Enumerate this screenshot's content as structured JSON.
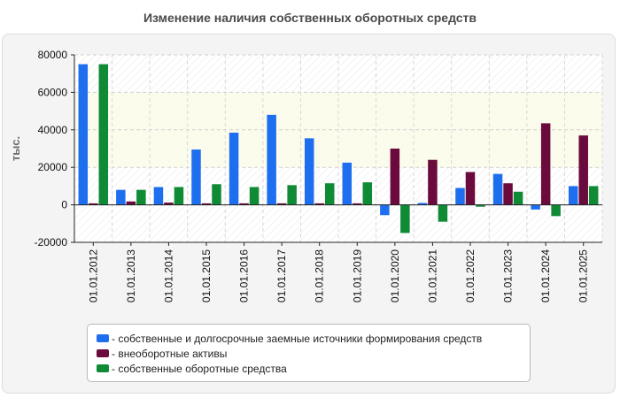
{
  "chart_data": {
    "type": "bar",
    "title": "Изменение наличия собственных оборотных средств",
    "ylabel": "тыс.",
    "xlabel": "",
    "ylim": [
      -20000,
      80000
    ],
    "yticks": [
      "80000",
      "60000",
      "40000",
      "20000",
      "0",
      "-20000"
    ],
    "grid": true,
    "legend_position": "bottom",
    "categories": [
      "01.01.2012",
      "01.01.2013",
      "01.01.2014",
      "01.01.2015",
      "01.01.2016",
      "01.01.2017",
      "01.01.2018",
      "01.01.2019",
      "01.01.2020",
      "01.01.2021",
      "01.01.2022",
      "01.01.2023",
      "01.01.2024",
      "01.01.2025"
    ],
    "series": [
      {
        "name": "собственные и долгосрочные заемные источники формирования средств",
        "color": "#1e6ff0",
        "values": [
          75000,
          8000,
          9500,
          29500,
          38500,
          48000,
          35500,
          22500,
          -5500,
          1000,
          9000,
          16500,
          -2500,
          10000
        ]
      },
      {
        "name": "внеоборотные активы",
        "color": "#6b0a3d",
        "values": [
          800,
          1800,
          1200,
          800,
          800,
          800,
          800,
          800,
          30000,
          24000,
          17500,
          11500,
          43500,
          37000
        ]
      },
      {
        "name": "собственные оборотные средства",
        "color": "#0f8a35",
        "values": [
          75000,
          8000,
          9500,
          11000,
          9500,
          10500,
          11500,
          12000,
          -15000,
          -9000,
          -1000,
          7000,
          -6000,
          10000
        ]
      }
    ]
  }
}
